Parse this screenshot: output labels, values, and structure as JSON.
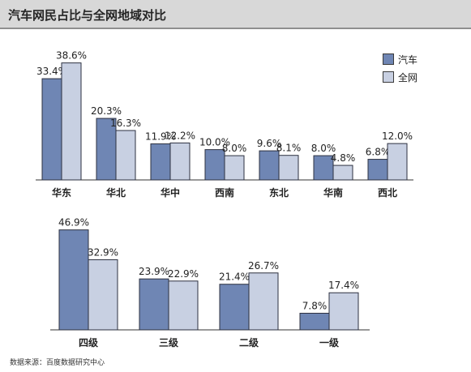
{
  "header": {
    "title": "汽车网民占比与全网地域对比"
  },
  "source": "数据来源：百度数据研究中心",
  "legend": {
    "car": "汽车",
    "all": "全网"
  },
  "colors": {
    "car": "#6f86b4",
    "all": "#c8d0e2",
    "border": "#2d3140",
    "text": "#222222"
  },
  "chart_data": [
    {
      "type": "bar",
      "categories": [
        "华东",
        "华北",
        "华中",
        "西南",
        "东北",
        "华南",
        "西北"
      ],
      "series": [
        {
          "name": "汽车",
          "values": [
            33.4,
            20.3,
            11.9,
            10.0,
            9.6,
            8.0,
            6.8
          ],
          "labels": [
            "33.4%",
            "20.3%",
            "11.9%",
            "10.0%",
            "9.6%",
            "8.0%",
            "6.8%"
          ]
        },
        {
          "name": "全网",
          "values": [
            38.6,
            16.3,
            12.2,
            8.0,
            8.1,
            4.8,
            12.0
          ],
          "labels": [
            "38.6%",
            "16.3%",
            "12.2%",
            "8.0%",
            "8.1%",
            "4.8%",
            "12.0%"
          ]
        }
      ],
      "legend": "top-right"
    },
    {
      "type": "bar",
      "categories": [
        "四级",
        "三级",
        "二级",
        "一级"
      ],
      "series": [
        {
          "name": "汽车",
          "values": [
            46.9,
            23.9,
            21.4,
            7.8
          ],
          "labels": [
            "46.9%",
            "23.9%",
            "21.4%",
            "7.8%"
          ]
        },
        {
          "name": "全网",
          "values": [
            32.9,
            22.9,
            26.7,
            17.4
          ],
          "labels": [
            "32.9%",
            "22.9%",
            "26.7%",
            "17.4%"
          ]
        }
      ]
    }
  ]
}
